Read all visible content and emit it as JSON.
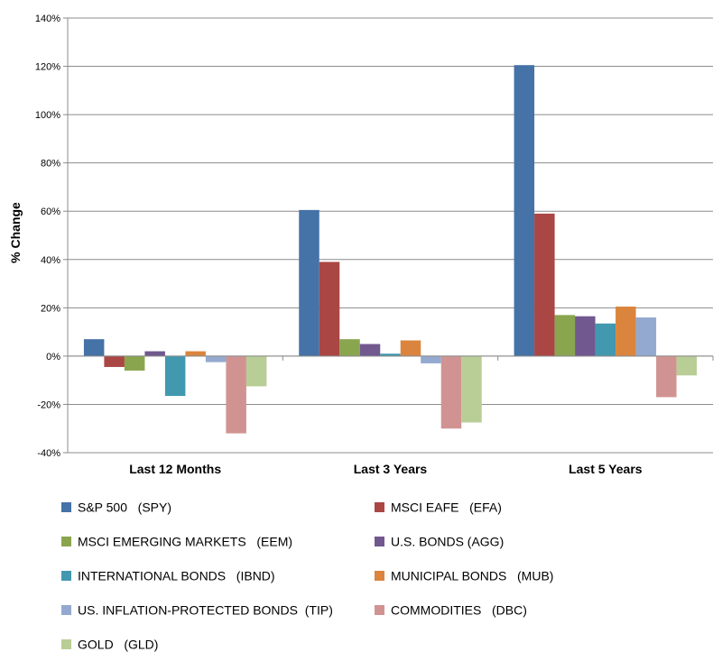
{
  "chart_data": {
    "type": "bar",
    "ylabel": "% Change",
    "xlabel": "",
    "ylim": [
      -40,
      140
    ],
    "yticks": [
      -40,
      -20,
      0,
      20,
      40,
      60,
      80,
      100,
      120,
      140
    ],
    "ytick_labels": [
      "-40%",
      "-20%",
      "0%",
      "20%",
      "40%",
      "60%",
      "80%",
      "100%",
      "120%",
      "140%"
    ],
    "grid": true,
    "legend_placement": "bottom",
    "categories": [
      "Last 12 Months",
      "Last 3 Years",
      "Last 5 Years"
    ],
    "series": [
      {
        "name": "S&P 500   (SPY)",
        "color": "#4572a7",
        "values": [
          7,
          60.5,
          120.5
        ]
      },
      {
        "name": "MSCI EAFE   (EFA)",
        "color": "#aa4643",
        "values": [
          -4.5,
          39,
          59
        ]
      },
      {
        "name": "MSCI EMERGING MARKETS   (EEM)",
        "color": "#89a54e",
        "values": [
          -6,
          7,
          17
        ]
      },
      {
        "name": "U.S. BONDS (AGG)",
        "color": "#71588f",
        "values": [
          2,
          5,
          16.5
        ]
      },
      {
        "name": "INTERNATIONAL BONDS   (IBND)",
        "color": "#4198af",
        "values": [
          -16.5,
          1,
          13.5
        ]
      },
      {
        "name": "MUNICIPAL BONDS   (MUB)",
        "color": "#db843d",
        "values": [
          2,
          6.5,
          20.5
        ]
      },
      {
        "name": "US. INFLATION-PROTECTED BONDS  (TIP)",
        "color": "#93a9cf",
        "values": [
          -2.5,
          -3,
          16
        ]
      },
      {
        "name": "COMMODITIES   (DBC)",
        "color": "#d19392",
        "values": [
          -32,
          -30,
          -17
        ]
      },
      {
        "name": "GOLD   (GLD)",
        "color": "#b9cd96",
        "values": [
          -12.5,
          -27.5,
          -8
        ]
      }
    ]
  }
}
